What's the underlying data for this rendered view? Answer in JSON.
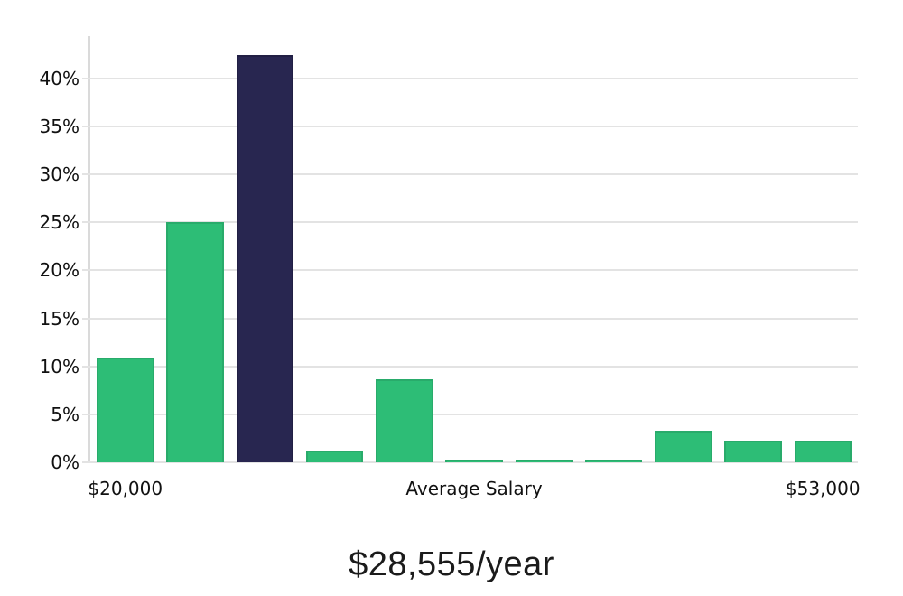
{
  "chart_data": {
    "type": "bar",
    "title": "$28,555/year",
    "xlabel": "",
    "ylabel": "",
    "grid": true,
    "legend": null,
    "ylim": [
      0,
      44.4
    ],
    "y_ticks": [
      {
        "value": 0,
        "label": "0%"
      },
      {
        "value": 5,
        "label": "5%"
      },
      {
        "value": 10,
        "label": "10%"
      },
      {
        "value": 15,
        "label": "15%"
      },
      {
        "value": 20,
        "label": "20%"
      },
      {
        "value": 25,
        "label": "25%"
      },
      {
        "value": 30,
        "label": "30%"
      },
      {
        "value": 35,
        "label": "35%"
      },
      {
        "value": 40,
        "label": "40%"
      }
    ],
    "x_labels": [
      {
        "text": "$20,000",
        "bar_index": 0
      },
      {
        "text": "Average Salary",
        "bar_index": 5
      },
      {
        "text": "$53,000",
        "bar_index": 10
      }
    ],
    "bars": [
      {
        "value": 10.9,
        "highlight": false
      },
      {
        "value": 25.0,
        "highlight": false
      },
      {
        "value": 42.4,
        "highlight": true
      },
      {
        "value": 1.2,
        "highlight": false
      },
      {
        "value": 8.7,
        "highlight": false
      },
      {
        "value": 0.25,
        "highlight": false
      },
      {
        "value": 0.25,
        "highlight": false
      },
      {
        "value": 0.25,
        "highlight": false
      },
      {
        "value": 3.3,
        "highlight": false
      },
      {
        "value": 2.3,
        "highlight": false
      },
      {
        "value": 2.3,
        "highlight": false
      }
    ],
    "colors": {
      "bar": "#2dbd76",
      "bar_border": "#29ab6b",
      "bar_highlight": "#282650",
      "bar_highlight_border": "#211f44",
      "gridline": "#e3e3e3",
      "axis_line": "#dadada",
      "axis_text": "#111111",
      "title_text": "#1b1b1b"
    }
  }
}
